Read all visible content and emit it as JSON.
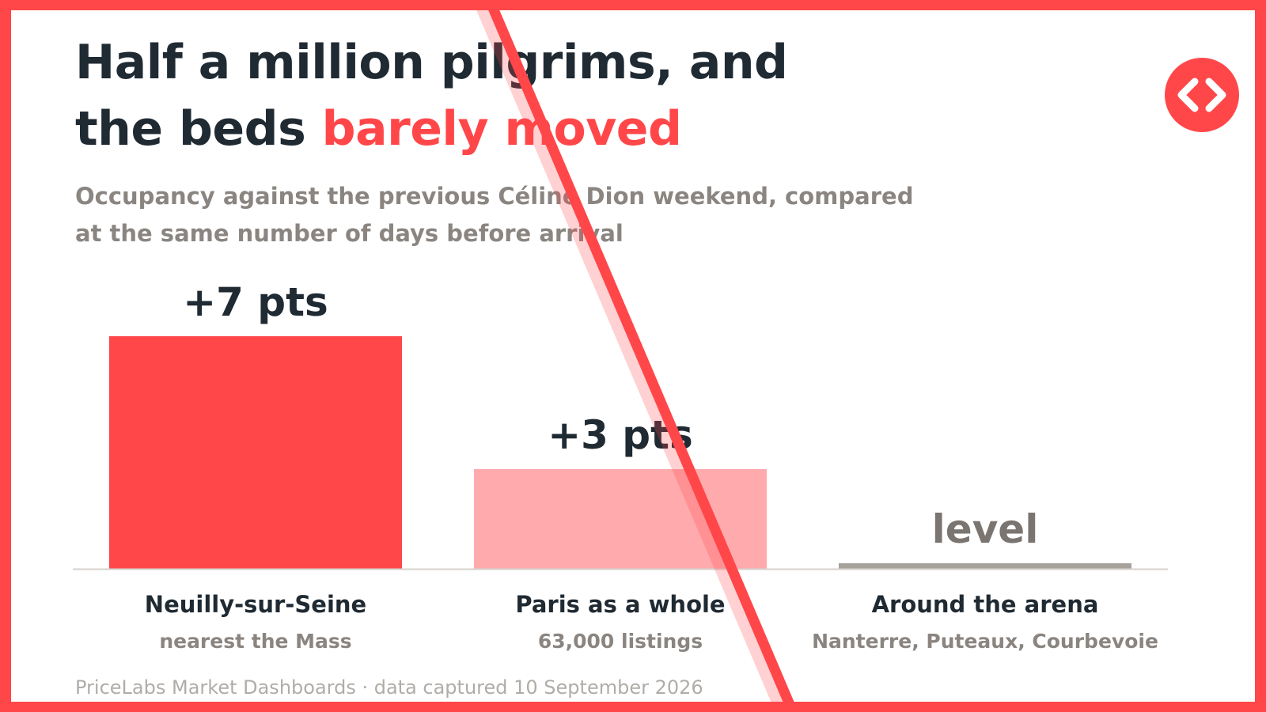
{
  "header": {
    "title_line1": "Half a million pilgrims, and",
    "title_line2_prefix": "the beds ",
    "title_line2_highlight": "barely moved",
    "subtitle": "Occupancy against the previous Céline Dion weekend, compared at the same number of days before arrival"
  },
  "logo": {
    "icon": "code-brackets-icon",
    "color": "#ff474a"
  },
  "chart_data": {
    "type": "bar",
    "title": "Half a million pilgrims, and the beds barely moved",
    "subtitle": "Occupancy against the previous Céline Dion weekend, compared at the same number of days before arrival",
    "unit": "pts",
    "ylim": [
      0,
      7
    ],
    "grid": false,
    "categories": [
      "Neuilly-sur-Seine",
      "Paris as a whole",
      "Around the arena"
    ],
    "category_sublabels": [
      "nearest the Mass",
      "63,000 listings",
      "Nanterre, Puteaux, Courbevoie"
    ],
    "values": [
      7,
      3,
      0
    ],
    "value_labels": [
      "+7 pts",
      "+3 pts",
      "level"
    ],
    "colors": [
      "#ff474a",
      "#ffaaac",
      "#a7a19c"
    ]
  },
  "footer": {
    "source": "PriceLabs Market Dashboards · data captured 10 September 2026"
  },
  "colors": {
    "accent": "#ff474a",
    "accent_light": "#ffaaac",
    "neutral": "#a7a19c",
    "text": "#1f2a33",
    "muted": "#8a8580"
  }
}
